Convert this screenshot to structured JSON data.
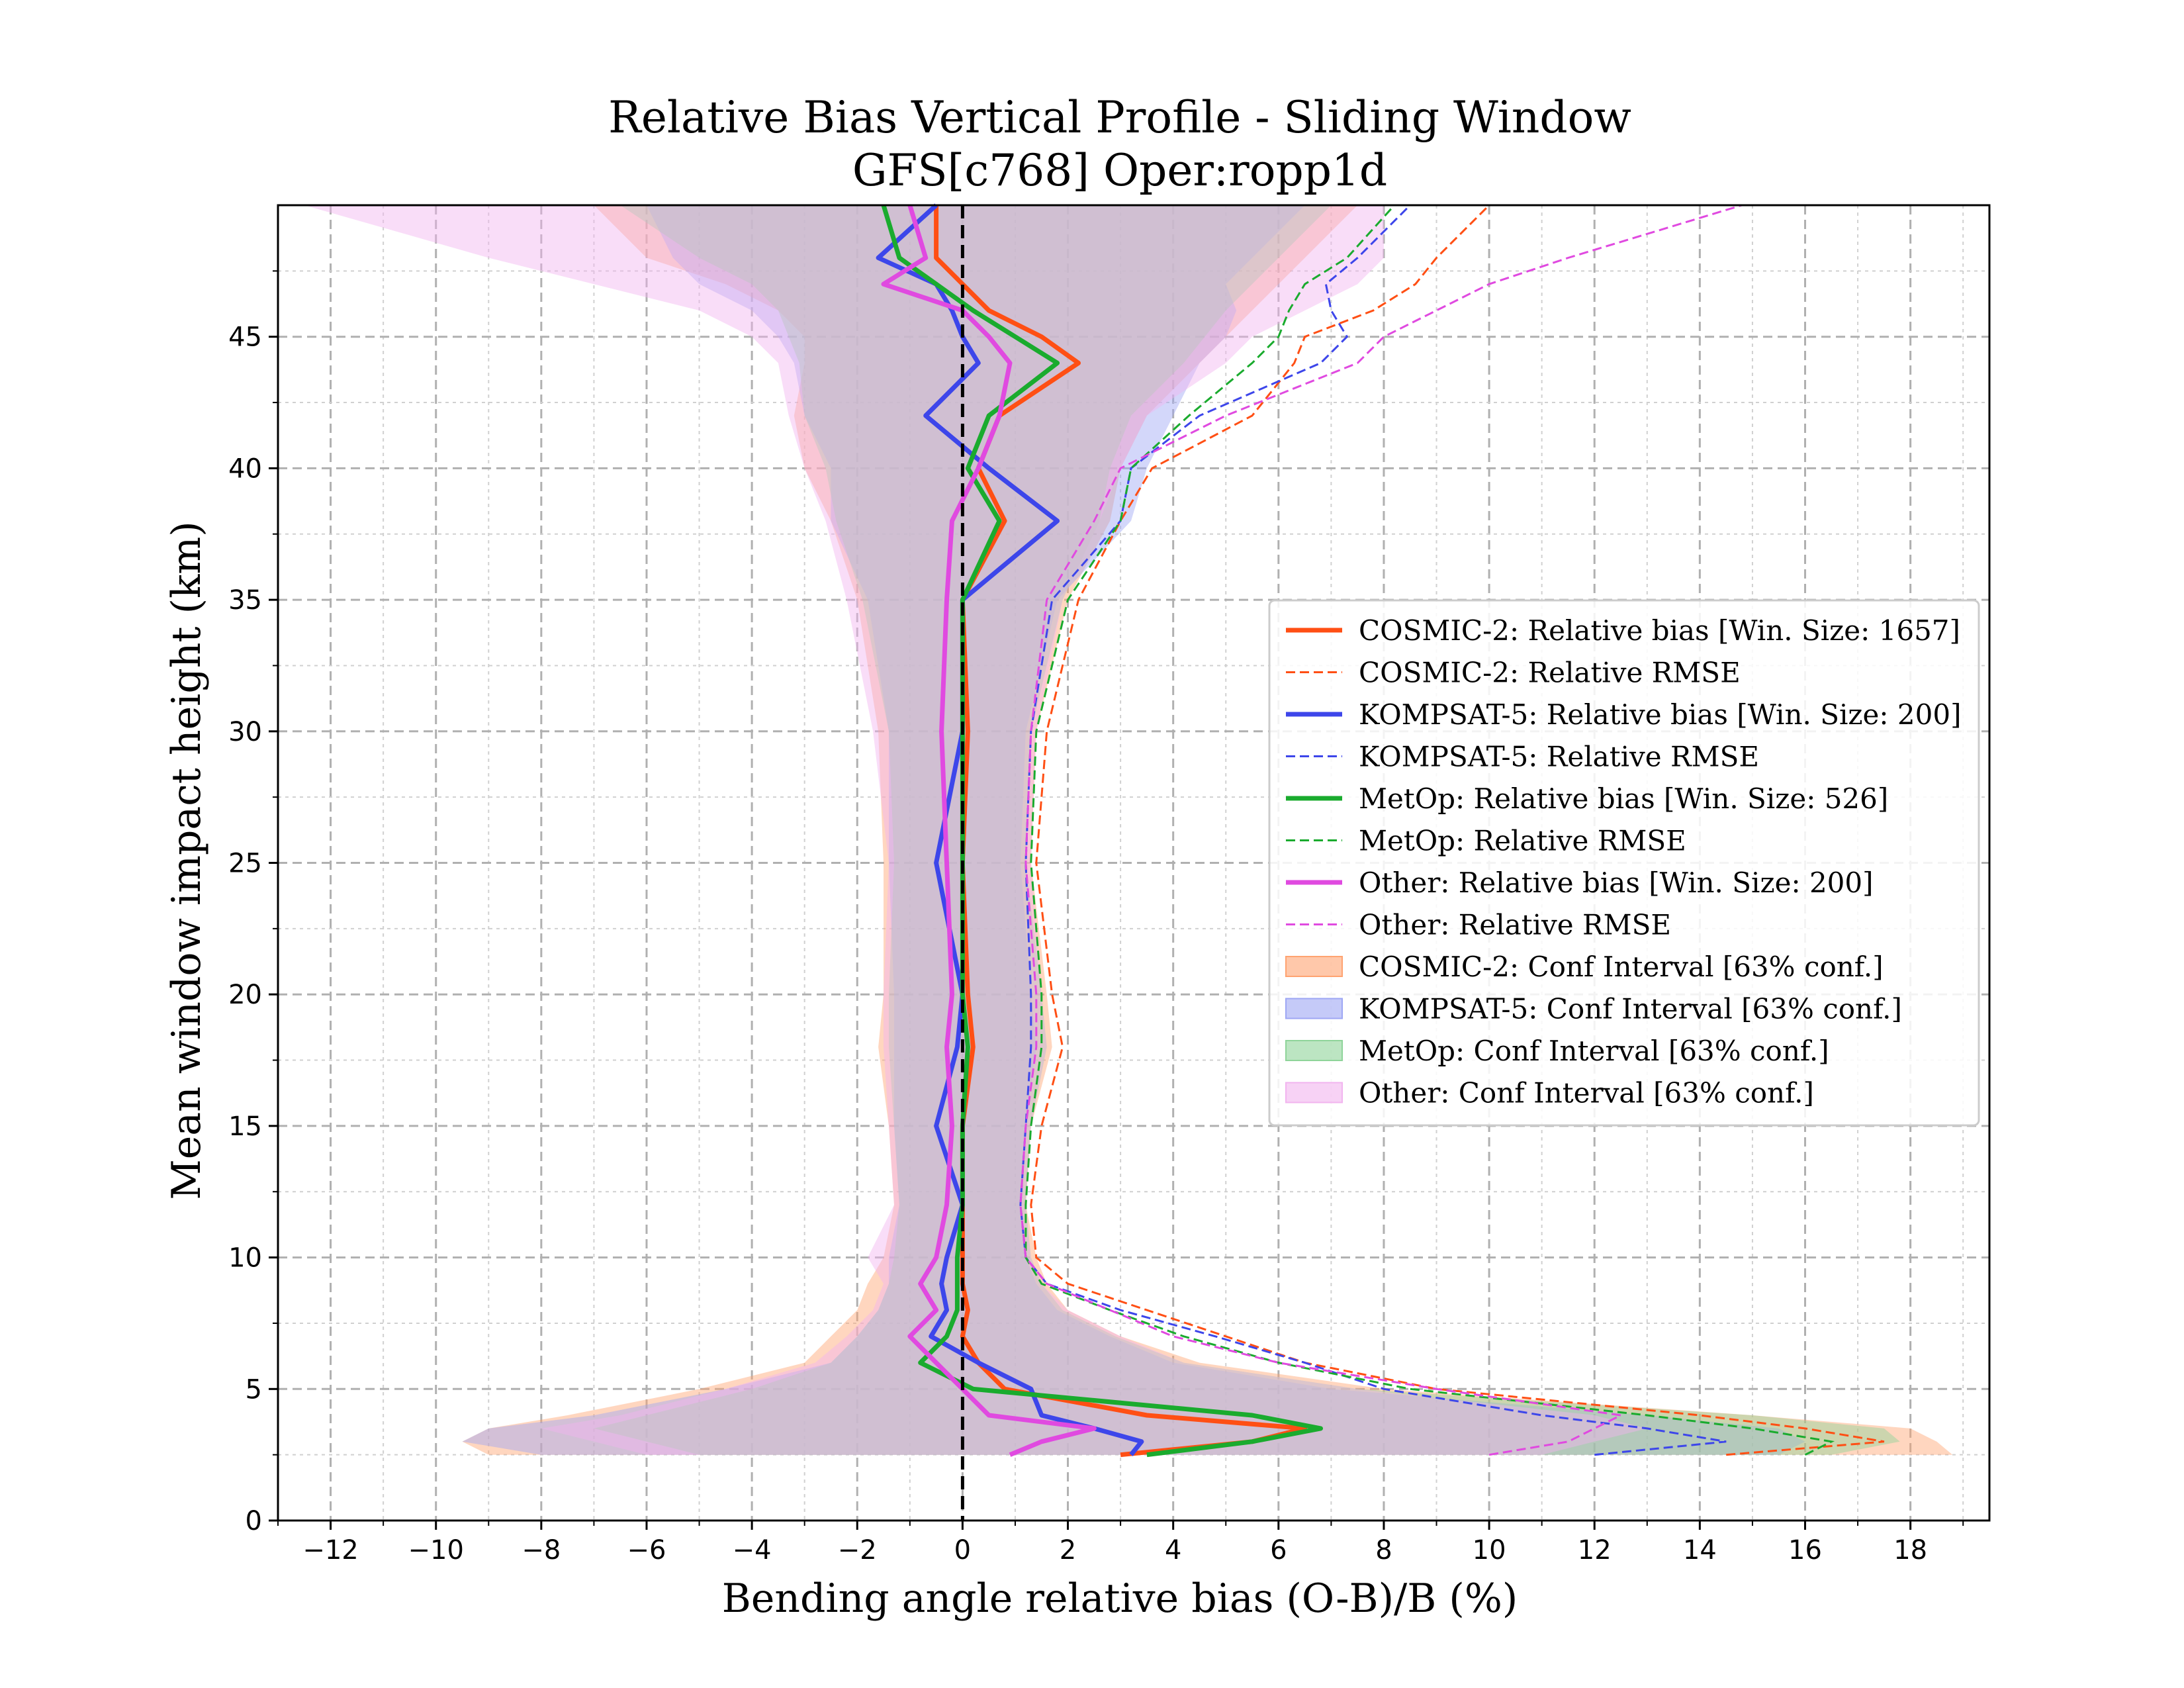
{
  "chart_data": {
    "type": "line",
    "title": "Relative Bias Vertical Profile - Sliding Window",
    "subtitle": "GFS[c768] Oper:ropp1d",
    "xlabel": "Bending angle relative bias (O-B)/B (%)",
    "ylabel": "Mean window impact height (km)",
    "xlim": [
      -13,
      19.5
    ],
    "ylim": [
      0,
      50
    ],
    "xticks": [
      "−12",
      "−10",
      "−8",
      "−6",
      "−4",
      "−2",
      "0",
      "2",
      "4",
      "6",
      "8",
      "10",
      "12",
      "14",
      "16",
      "18"
    ],
    "xtick_values": [
      -12,
      -10,
      -8,
      -6,
      -4,
      -2,
      0,
      2,
      4,
      6,
      8,
      10,
      12,
      14,
      16,
      18
    ],
    "yticks": [
      "0",
      "5",
      "10",
      "15",
      "20",
      "25",
      "30",
      "35",
      "40",
      "45"
    ],
    "ytick_values": [
      0,
      5,
      10,
      15,
      20,
      25,
      30,
      35,
      40,
      45
    ],
    "grid": true,
    "legend_position": "center-right",
    "zero_line": 0,
    "y": [
      2.5,
      3,
      3.5,
      4,
      5,
      6,
      7,
      8,
      9,
      10,
      12,
      15,
      18,
      20,
      25,
      30,
      35,
      38,
      40,
      42,
      44,
      45,
      46,
      47,
      48,
      50
    ],
    "series": [
      {
        "name": "COSMIC-2",
        "color": "#ff4f14",
        "bias_label": "COSMIC-2: Relative bias [Win. Size: 1657]",
        "rmse_label": "COSMIC-2: Relative RMSE",
        "ci_label": "COSMIC-2: Conf Interval [63% conf.]",
        "ci_color": "#ffa371",
        "bias": [
          3.0,
          5.5,
          6.5,
          3.5,
          0.8,
          0.3,
          0.0,
          0.1,
          0.0,
          0.0,
          0.0,
          0.0,
          0.2,
          0.1,
          0.0,
          0.1,
          0.0,
          0.8,
          0.3,
          0.7,
          2.2,
          1.5,
          0.5,
          0.0,
          -0.5,
          -0.5
        ],
        "rmse": [
          14.5,
          17.5,
          16.0,
          14.0,
          9.0,
          6.5,
          5.0,
          3.5,
          2.0,
          1.4,
          1.3,
          1.5,
          1.9,
          1.7,
          1.4,
          1.6,
          2.2,
          3.0,
          3.6,
          5.5,
          6.3,
          6.5,
          7.8,
          8.6,
          9.0,
          10.0
        ],
        "ci_low": [
          -9.0,
          -9.5,
          -9.0,
          -7.5,
          -5.0,
          -3.0,
          -2.5,
          -2.0,
          -1.8,
          -1.5,
          -1.3,
          -1.4,
          -1.6,
          -1.5,
          -1.5,
          -1.6,
          -2.0,
          -2.5,
          -3.0,
          -3.2,
          -3.0,
          -3.0,
          -3.5,
          -4.5,
          -6.0,
          -7.0
        ],
        "ci_high": [
          18.8,
          18.5,
          18.0,
          15.0,
          8.0,
          4.5,
          3.0,
          2.0,
          1.6,
          1.4,
          1.2,
          1.3,
          1.7,
          1.6,
          1.3,
          1.4,
          2.0,
          2.8,
          3.0,
          3.5,
          4.5,
          5.0,
          5.5,
          6.0,
          6.5,
          7.5
        ]
      },
      {
        "name": "KOMPSAT-5",
        "color": "#3d46ea",
        "bias_label": "KOMPSAT-5: Relative bias [Win. Size: 200]",
        "rmse_label": "KOMPSAT-5: Relative RMSE",
        "ci_label": "KOMPSAT-5: Conf Interval [63% conf.]",
        "ci_color": "#9ea7f4",
        "bias": [
          3.2,
          3.4,
          2.5,
          1.5,
          1.3,
          0.3,
          -0.6,
          -0.3,
          -0.4,
          -0.3,
          0.0,
          -0.5,
          -0.1,
          0.0,
          -0.5,
          0.0,
          0.0,
          1.8,
          0.5,
          -0.7,
          0.3,
          0.0,
          -0.2,
          -0.5,
          -1.6,
          -0.5
        ],
        "rmse": [
          12.0,
          14.5,
          13.0,
          11.0,
          8.0,
          6.5,
          4.8,
          3.0,
          1.6,
          1.2,
          1.1,
          1.2,
          1.3,
          1.3,
          1.2,
          1.3,
          1.7,
          3.0,
          3.2,
          4.5,
          6.8,
          7.3,
          7.0,
          6.9,
          7.5,
          8.5
        ],
        "ci_low": [
          -8.0,
          -9.5,
          -9.0,
          -7.0,
          -4.5,
          -2.5,
          -2.0,
          -1.6,
          -1.4,
          -1.4,
          -1.2,
          -1.3,
          -1.3,
          -1.3,
          -1.4,
          -1.4,
          -1.8,
          -2.5,
          -2.5,
          -3.0,
          -3.2,
          -3.5,
          -4.0,
          -5.0,
          -5.5,
          -6.0
        ],
        "ci_high": [
          15.5,
          16.0,
          15.5,
          13.0,
          7.0,
          4.0,
          2.8,
          1.8,
          1.4,
          1.2,
          1.1,
          1.2,
          1.4,
          1.3,
          1.1,
          1.2,
          1.8,
          3.2,
          3.5,
          4.0,
          4.5,
          5.0,
          5.2,
          5.0,
          5.5,
          6.5
        ]
      },
      {
        "name": "MetOp",
        "color": "#1aab2e",
        "bias_label": "MetOp: Relative bias [Win. Size: 526]",
        "rmse_label": "MetOp: Relative RMSE",
        "ci_label": "MetOp: Conf Interval [63% conf.]",
        "ci_color": "#8fd49a",
        "bias": [
          3.5,
          5.5,
          6.8,
          5.5,
          0.2,
          -0.8,
          -0.3,
          -0.1,
          -0.1,
          -0.1,
          0.0,
          0.0,
          0.1,
          0.0,
          0.0,
          0.0,
          0.0,
          0.7,
          0.1,
          0.5,
          1.8,
          1.0,
          0.2,
          -0.5,
          -1.2,
          -1.5
        ],
        "rmse": [
          16.0,
          16.5,
          15.0,
          13.0,
          8.5,
          6.0,
          4.2,
          2.8,
          1.5,
          1.2,
          1.2,
          1.3,
          1.5,
          1.5,
          1.3,
          1.4,
          2.0,
          3.0,
          3.2,
          4.3,
          5.5,
          6.0,
          6.2,
          6.5,
          7.3,
          8.2
        ],
        "ci_low": [
          -5.0,
          -6.0,
          -7.0,
          -6.0,
          -4.0,
          -2.5,
          -2.0,
          -1.6,
          -1.4,
          -1.3,
          -1.2,
          -1.3,
          -1.4,
          -1.4,
          -1.3,
          -1.4,
          -1.9,
          -2.4,
          -2.6,
          -3.0,
          -3.1,
          -3.3,
          -3.5,
          -4.0,
          -5.0,
          -6.5
        ],
        "ci_high": [
          16.5,
          17.8,
          17.5,
          15.0,
          7.5,
          4.2,
          2.9,
          1.9,
          1.5,
          1.3,
          1.2,
          1.3,
          1.6,
          1.5,
          1.2,
          1.3,
          1.9,
          2.6,
          2.8,
          3.2,
          4.2,
          4.6,
          5.0,
          5.5,
          6.0,
          7.0
        ]
      },
      {
        "name": "Other",
        "color": "#e04ae0",
        "bias_label": "Other: Relative bias [Win. Size: 200]",
        "rmse_label": "Other: Relative RMSE",
        "ci_label": "Other: Conf Interval [63% conf.]",
        "ci_color": "#f2b4ef",
        "bias": [
          0.9,
          1.5,
          2.5,
          0.5,
          0.0,
          -0.5,
          -1.0,
          -0.5,
          -0.8,
          -0.5,
          -0.3,
          -0.2,
          -0.3,
          -0.2,
          -0.3,
          -0.4,
          -0.3,
          -0.2,
          0.3,
          0.7,
          0.9,
          0.5,
          0.0,
          -1.5,
          -0.7,
          -1.0
        ],
        "rmse": [
          10.0,
          11.5,
          12.0,
          12.5,
          9.0,
          6.0,
          4.0,
          2.8,
          1.6,
          1.2,
          1.1,
          1.2,
          1.4,
          1.4,
          1.2,
          1.3,
          1.6,
          2.5,
          3.0,
          5.0,
          7.5,
          8.0,
          9.0,
          10.0,
          11.5,
          14.8
        ],
        "ci_low": [
          -6.0,
          -7.0,
          -8.0,
          -6.5,
          -4.5,
          -2.8,
          -2.2,
          -1.7,
          -1.5,
          -1.8,
          -1.3,
          -1.4,
          -1.5,
          -1.5,
          -1.4,
          -1.7,
          -2.2,
          -2.6,
          -3.0,
          -3.3,
          -3.5,
          -4.0,
          -5.0,
          -7.0,
          -9.0,
          -12.5
        ],
        "ci_high": [
          11.0,
          12.0,
          13.0,
          12.0,
          7.5,
          4.2,
          3.0,
          2.0,
          1.5,
          1.3,
          1.2,
          1.3,
          1.6,
          1.5,
          1.3,
          1.4,
          1.9,
          2.6,
          3.0,
          3.5,
          5.0,
          5.5,
          6.5,
          7.5,
          8.0,
          8.0
        ]
      }
    ]
  }
}
